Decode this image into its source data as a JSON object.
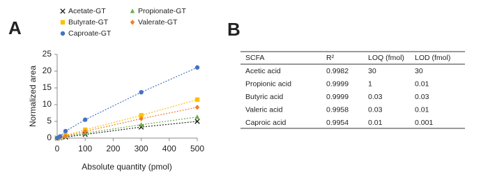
{
  "panels": [
    "A",
    "B"
  ],
  "chart_data": {
    "type": "scatter",
    "xlabel": "Absolute quantity (pmol)",
    "ylabel": "Normalized area",
    "x": [
      0,
      10,
      30,
      100,
      300,
      500
    ],
    "xlim": [
      0,
      500
    ],
    "xticks": [
      0,
      100,
      200,
      300,
      400,
      500
    ],
    "ylim": [
      0,
      25
    ],
    "yticks": [
      0,
      5,
      10,
      15,
      20,
      25
    ],
    "series": [
      {
        "name": "Acetate-GT",
        "color": "#222222",
        "marker": "x",
        "values": [
          0,
          0.1,
          0.3,
          1.1,
          3.3,
          5
        ]
      },
      {
        "name": "Propionate-GT",
        "color": "#70ad47",
        "marker": "triangle",
        "values": [
          0,
          0.1,
          0.5,
          1.5,
          4,
          6.3
        ]
      },
      {
        "name": "Butyrate-GT",
        "color": "#ffc000",
        "marker": "square",
        "values": [
          0,
          0.2,
          0.8,
          2.5,
          6.8,
          11.5
        ]
      },
      {
        "name": "Valerate-GT",
        "color": "#ed7d31",
        "marker": "diamond",
        "values": [
          0,
          0.2,
          0.6,
          2,
          5.8,
          9.2
        ]
      },
      {
        "name": "Caproate-GT",
        "color": "#4472c4",
        "marker": "circle",
        "values": [
          0,
          0.5,
          2.1,
          5.5,
          13.7,
          21.1
        ]
      }
    ]
  },
  "table": {
    "header": [
      "SCFA",
      "R²",
      "LOQ (fmol)",
      "LOD (fmol)"
    ],
    "rows": [
      [
        "Acetic acid",
        "0.9982",
        "30",
        "30"
      ],
      [
        "Propionic acid",
        "0.9999",
        "1",
        "0.01"
      ],
      [
        "Butyric acid",
        "0.9999",
        "0.03",
        "0.03"
      ],
      [
        "Valeric acid",
        "0.9958",
        "0.03",
        "0.01"
      ],
      [
        "Caproic acid",
        "0.9954",
        "0.01",
        "0.001"
      ]
    ]
  }
}
